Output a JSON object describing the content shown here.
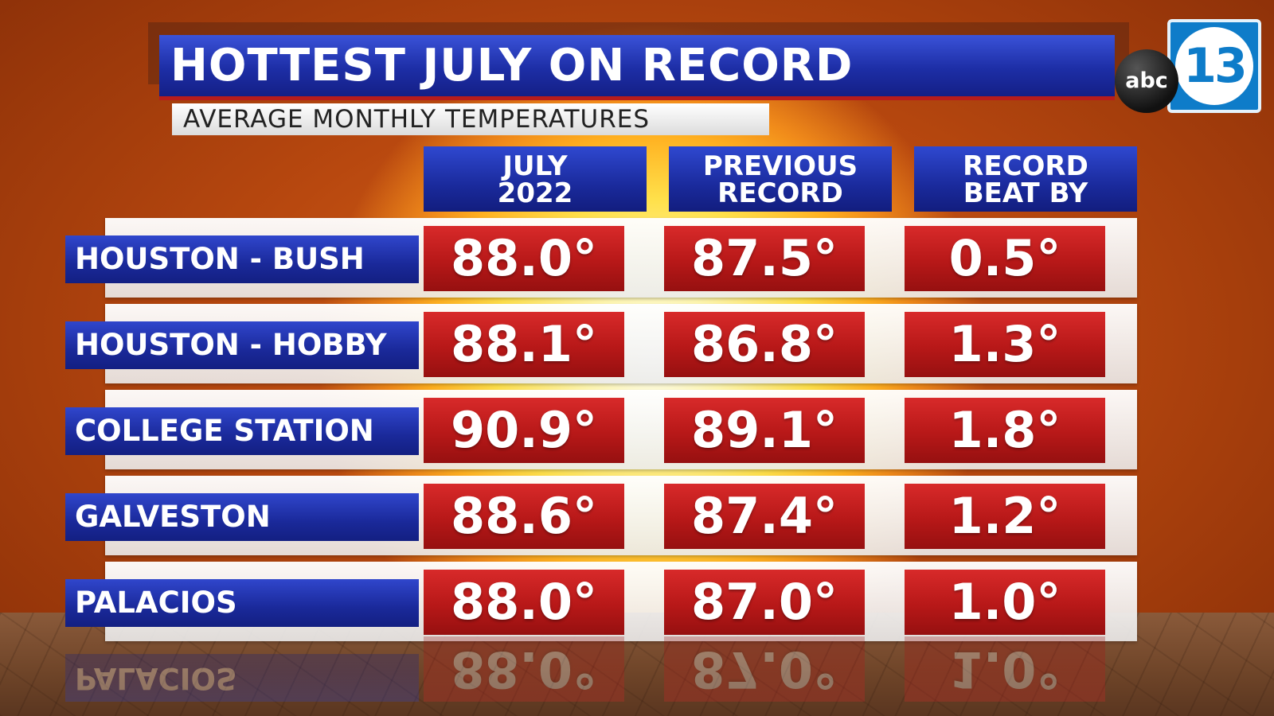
{
  "title": "HOTTEST JULY ON RECORD",
  "subtitle": "AVERAGE MONTHLY TEMPERATURES",
  "logo": {
    "left": "abc",
    "right": "13"
  },
  "colors": {
    "header_blue": "#1d2ea6",
    "cell_red": "#b71818",
    "logo_blue": "#0e7cc9"
  },
  "chart_data": {
    "type": "table",
    "columns": [
      {
        "line1": "JULY",
        "line2": "2022"
      },
      {
        "line1": "PREVIOUS",
        "line2": "RECORD"
      },
      {
        "line1": "RECORD",
        "line2": "BEAT BY"
      }
    ],
    "rows": [
      {
        "label": "HOUSTON - BUSH",
        "values": [
          "88.0°",
          "87.5°",
          "0.5°"
        ]
      },
      {
        "label": "HOUSTON - HOBBY",
        "values": [
          "88.1°",
          "86.8°",
          "1.3°"
        ]
      },
      {
        "label": "COLLEGE STATION",
        "values": [
          "90.9°",
          "89.1°",
          "1.8°"
        ]
      },
      {
        "label": "GALVESTON",
        "values": [
          "88.6°",
          "87.4°",
          "1.2°"
        ]
      },
      {
        "label": "PALACIOS",
        "values": [
          "88.0°",
          "87.0°",
          "1.0°"
        ]
      }
    ]
  }
}
